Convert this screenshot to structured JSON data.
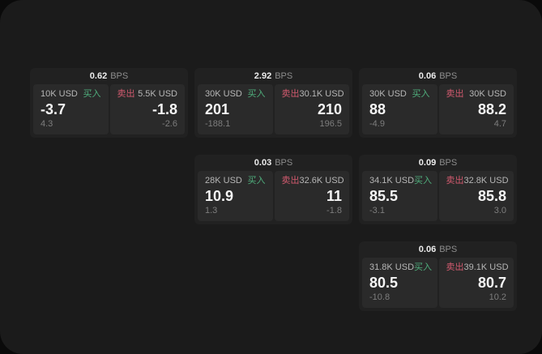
{
  "window": {
    "background": "#1b1b1b",
    "outer_background": "#0a0a0a"
  },
  "labels": {
    "bps_unit": "BPS",
    "buy_tag": "买入",
    "sell_tag": "卖出"
  },
  "colors": {
    "buy_green": "#4fae7c",
    "sell_red": "#d15a6e"
  },
  "cards": [
    {
      "slot": {
        "row": 1,
        "col": 1
      },
      "bps": "0.62",
      "buy": {
        "size": "10K USD",
        "price": "-3.7",
        "sub": "4.3"
      },
      "sell": {
        "size": "5.5K USD",
        "price": "-1.8",
        "sub": "-2.6"
      }
    },
    {
      "slot": {
        "row": 1,
        "col": 2
      },
      "bps": "2.92",
      "buy": {
        "size": "30K USD",
        "price": "201",
        "sub": "-188.1"
      },
      "sell": {
        "size": "30.1K USD",
        "price": "210",
        "sub": "196.5"
      }
    },
    {
      "slot": {
        "row": 1,
        "col": 3
      },
      "bps": "0.06",
      "buy": {
        "size": "30K USD",
        "price": "88",
        "sub": "-4.9"
      },
      "sell": {
        "size": "30K USD",
        "price": "88.2",
        "sub": "4.7"
      }
    },
    {
      "slot": {
        "row": 2,
        "col": 2
      },
      "bps": "0.03",
      "buy": {
        "size": "28K USD",
        "price": "10.9",
        "sub": "1.3"
      },
      "sell": {
        "size": "32.6K USD",
        "price": "11",
        "sub": "-1.8"
      }
    },
    {
      "slot": {
        "row": 2,
        "col": 3
      },
      "bps": "0.09",
      "buy": {
        "size": "34.1K USD",
        "price": "85.5",
        "sub": "-3.1"
      },
      "sell": {
        "size": "32.8K USD",
        "price": "85.8",
        "sub": "3.0"
      }
    },
    {
      "slot": {
        "row": 3,
        "col": 3
      },
      "bps": "0.06",
      "buy": {
        "size": "31.8K USD",
        "price": "80.5",
        "sub": "-10.8"
      },
      "sell": {
        "size": "39.1K USD",
        "price": "80.7",
        "sub": "10.2"
      }
    }
  ]
}
